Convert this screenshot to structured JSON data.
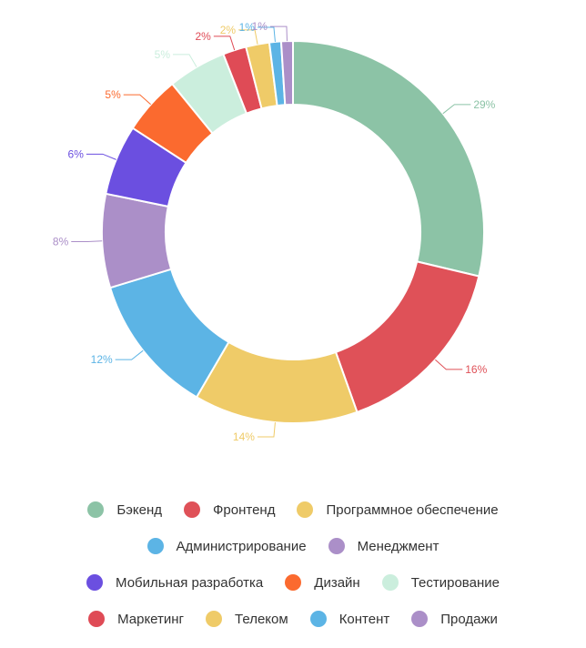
{
  "chart_data": {
    "type": "pie",
    "donut": true,
    "slices": [
      {
        "label": "Бэкенд",
        "value": 29,
        "pct_label": "29%",
        "color": "#8CC3A6"
      },
      {
        "label": "Фронтенд",
        "value": 16,
        "pct_label": "16%",
        "color": "#DF5158"
      },
      {
        "label": "Программное обеспечение",
        "value": 14,
        "pct_label": "14%",
        "color": "#EFCB68"
      },
      {
        "label": "Администрирование",
        "value": 12,
        "pct_label": "12%",
        "color": "#5CB4E5"
      },
      {
        "label": "Менеджмент",
        "value": 8,
        "pct_label": "8%",
        "color": "#AB8FC8"
      },
      {
        "label": "Мобильная разработка",
        "value": 6,
        "pct_label": "6%",
        "color": "#6B4FE0"
      },
      {
        "label": "Дизайн",
        "value": 5,
        "pct_label": "5%",
        "color": "#FB6A2F"
      },
      {
        "label": "Тестирование",
        "value": 5,
        "pct_label": "5%",
        "color": "#CBEEDD"
      },
      {
        "label": "Маркетинг",
        "value": 2,
        "pct_label": "2%",
        "color": "#DF4B56"
      },
      {
        "label": "Телеком",
        "value": 2,
        "pct_label": "2%",
        "color": "#EFCB68"
      },
      {
        "label": "Контент",
        "value": 1,
        "pct_label": "1%",
        "color": "#5CB4E5"
      },
      {
        "label": "Продажи",
        "value": 1,
        "pct_label": "1%",
        "color": "#AB8FC8"
      }
    ],
    "legend_position": "bottom"
  },
  "legend_rows": [
    [
      0,
      1,
      2
    ],
    [
      3,
      4
    ],
    [
      5,
      6,
      7
    ],
    [
      8,
      9,
      10,
      11
    ]
  ]
}
